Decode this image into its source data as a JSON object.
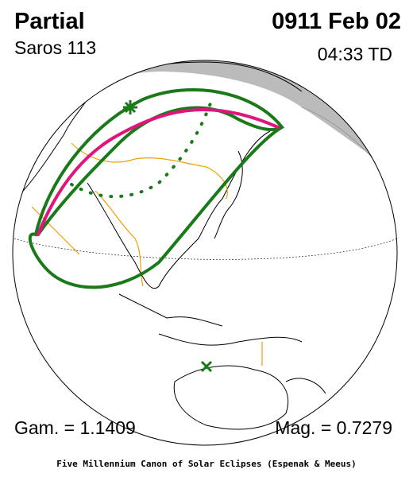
{
  "header": {
    "title": "Partial",
    "date": "0911 Feb 02",
    "saros": "Saros 113",
    "time": "04:33 TD"
  },
  "footer": {
    "gamma": "Gam. = 1.1409",
    "magnitude": "Mag. = 0.7279",
    "credit": "Five Millennium Canon of Solar Eclipses (Espenak & Meeus)"
  }
}
